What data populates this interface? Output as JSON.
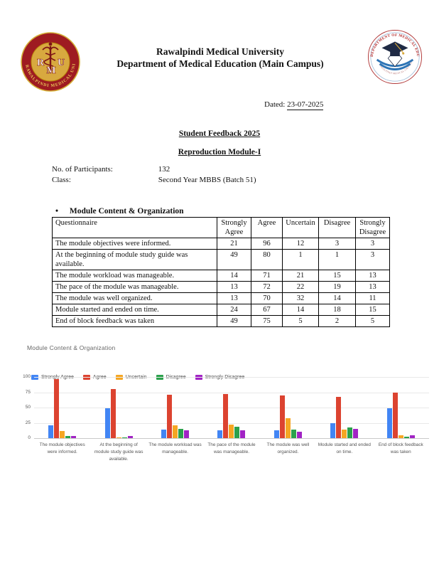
{
  "header": {
    "university": "Rawalpindi Medical University",
    "department": "Department of Medical Education (Main Campus)",
    "dated_label": "Dated:",
    "dated_value": "23-07-2025"
  },
  "titles": {
    "feedback": "Student Feedback 2025",
    "module": "Reproduction Module-I"
  },
  "info": {
    "participants_label": "No. of Participants:",
    "participants_value": "132",
    "class_label": "Class:",
    "class_value": "Second Year MBBS (Batch 51)"
  },
  "section": {
    "heading": "Module Content & Organization"
  },
  "logos": {
    "left": {
      "letters": "RMU",
      "ring_text": "RAWALPINDI MEDICAL UNIVERSITY"
    },
    "right": {
      "ring_text": "DEPARTMENT OF MEDICAL EDUCATION",
      "bottom_text": "RAWALPINDI MEDICAL UNIVERSITY"
    }
  },
  "table": {
    "columns": [
      "Questionnaire",
      "Strongly Agree",
      "Agree",
      "Uncertain",
      "Disagree",
      "Strongly Disagree"
    ],
    "rows": [
      {
        "question": "The module objectives were informed.",
        "values": [
          21,
          96,
          12,
          3,
          3
        ]
      },
      {
        "question": "At the beginning of module study guide was available.",
        "values": [
          49,
          80,
          1,
          1,
          3
        ]
      },
      {
        "question": "The module workload was manageable.",
        "values": [
          14,
          71,
          21,
          15,
          13
        ]
      },
      {
        "question": "The pace of the module was manageable.",
        "values": [
          13,
          72,
          22,
          19,
          13
        ]
      },
      {
        "question": "The module was well organized.",
        "values": [
          13,
          70,
          32,
          14,
          11
        ]
      },
      {
        "question": "Module started and ended on time.",
        "values": [
          24,
          67,
          14,
          18,
          15
        ]
      },
      {
        "question": "End of block feedback was taken",
        "values": [
          49,
          75,
          5,
          2,
          5
        ]
      }
    ]
  },
  "chart_data": {
    "type": "bar",
    "title": "Module Content & Organization",
    "categories": [
      "The module objectives were informed.",
      "At the beginning of module study guide was available.",
      "The module workload was manageable.",
      "The pace of the module was manageable.",
      "The module was well organized.",
      "Module started and ended on time.",
      "End of block feedback was taken"
    ],
    "series": [
      {
        "name": "Strongly Agree",
        "color": "#4285F4",
        "values": [
          21,
          49,
          14,
          13,
          13,
          24,
          49
        ]
      },
      {
        "name": "Agree",
        "color": "#DC4330",
        "values": [
          96,
          80,
          71,
          72,
          70,
          67,
          75
        ]
      },
      {
        "name": "Uncertain",
        "color": "#F5A623",
        "values": [
          12,
          1,
          21,
          22,
          32,
          14,
          5
        ]
      },
      {
        "name": "Disagree",
        "color": "#2CA14C",
        "values": [
          3,
          1,
          15,
          19,
          14,
          18,
          2
        ]
      },
      {
        "name": "Strongly Disagree",
        "color": "#A123C4",
        "values": [
          3,
          3,
          13,
          13,
          11,
          15,
          5
        ]
      }
    ],
    "xlabel": "",
    "ylabel": "",
    "ylim": [
      0,
      100
    ],
    "yticks": [
      0,
      25,
      50,
      75,
      100
    ],
    "grid": true,
    "legend_position": "top"
  }
}
